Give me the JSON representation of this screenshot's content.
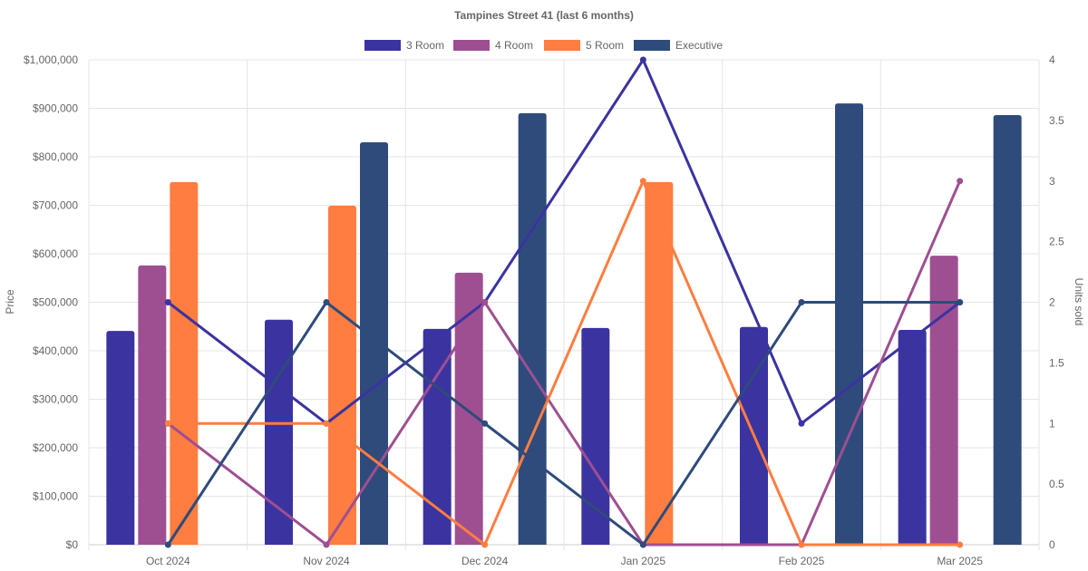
{
  "chart_data": {
    "type": "bar",
    "title": "Tampines Street 41 (last 6 months)",
    "categories": [
      "Oct 2024",
      "Nov 2024",
      "Dec 2024",
      "Jan 2025",
      "Feb 2025",
      "Mar 2025"
    ],
    "ylabel": "Price",
    "y2label": "Units sold",
    "ylim": [
      0,
      1000000
    ],
    "y2lim": [
      0,
      4
    ],
    "yticks": [
      "$0",
      "$100,000",
      "$200,000",
      "$300,000",
      "$400,000",
      "$500,000",
      "$600,000",
      "$700,000",
      "$800,000",
      "$900,000",
      "$1,000,000"
    ],
    "y2ticks": [
      "0",
      "0.5",
      "1",
      "1.5",
      "2",
      "2.5",
      "3",
      "3.5",
      "4"
    ],
    "legend_position": "top",
    "grid": true,
    "series": [
      {
        "name": "3 Room",
        "color": "#3b33a0",
        "price": [
          441000,
          464000,
          445000,
          447000,
          449000,
          443000
        ],
        "units": [
          2,
          1,
          2,
          4,
          1,
          2
        ]
      },
      {
        "name": "4 Room",
        "color": "#9e4f92",
        "price": [
          576000,
          null,
          561000,
          null,
          null,
          596000
        ],
        "units": [
          1,
          0,
          2,
          0,
          0,
          3
        ]
      },
      {
        "name": "5 Room",
        "color": "#ff7d40",
        "price": [
          748000,
          699000,
          null,
          748000,
          null,
          null
        ],
        "units": [
          1,
          1,
          0,
          3,
          0,
          0
        ]
      },
      {
        "name": "Executive",
        "color": "#2e4b7b",
        "price": [
          null,
          830000,
          890000,
          null,
          910000,
          886000
        ],
        "units": [
          0,
          2,
          1,
          0,
          2,
          2
        ]
      }
    ]
  }
}
